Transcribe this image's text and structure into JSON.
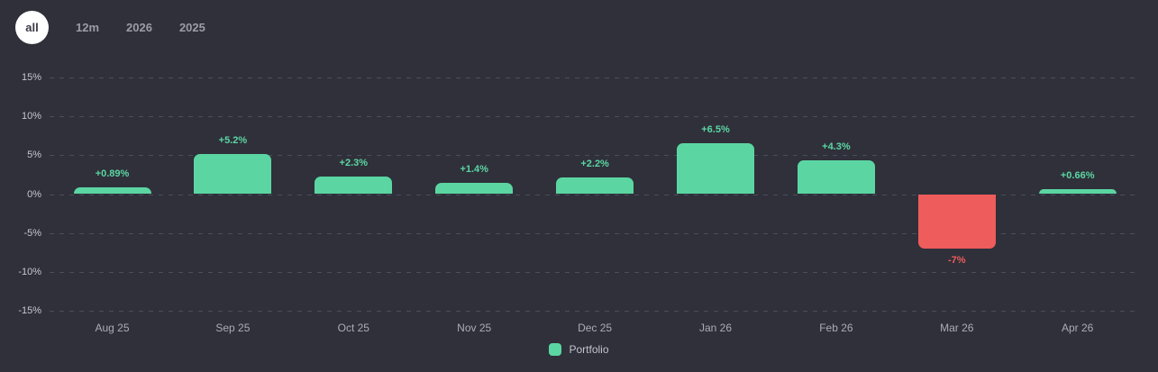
{
  "filters": {
    "items": [
      {
        "label": "all",
        "active": true
      },
      {
        "label": "12m",
        "active": false
      },
      {
        "label": "2026",
        "active": false
      },
      {
        "label": "2025",
        "active": false
      }
    ]
  },
  "chart_data": {
    "type": "bar",
    "title": "",
    "categories": [
      "Aug 25",
      "Sep 25",
      "Oct 25",
      "Nov 25",
      "Dec 25",
      "Jan 26",
      "Feb 26",
      "Mar 26",
      "Apr 26"
    ],
    "series": [
      {
        "name": "Portfolio",
        "values": [
          0.89,
          5.2,
          2.3,
          1.4,
          2.2,
          6.5,
          4.3,
          -7,
          0.66
        ]
      }
    ],
    "value_labels": [
      "+0.89%",
      "+5.2%",
      "+2.3%",
      "+1.4%",
      "+2.2%",
      "+6.5%",
      "+4.3%",
      "-7%",
      "+0.66%"
    ],
    "xlabel": "",
    "ylabel": "",
    "y_ticks": [
      15,
      10,
      5,
      0,
      -5,
      -10,
      -15
    ],
    "y_tick_labels": [
      "15%",
      "10%",
      "5%",
      "0%",
      "-5%",
      "-10%",
      "-15%"
    ],
    "ylim": [
      -15,
      15
    ],
    "grid": "horizontal-dashed",
    "legend": {
      "label": "Portfolio",
      "position": "bottom-center"
    },
    "colors": {
      "positive": "#5bd6a2",
      "negative": "#ee5c5c"
    }
  }
}
